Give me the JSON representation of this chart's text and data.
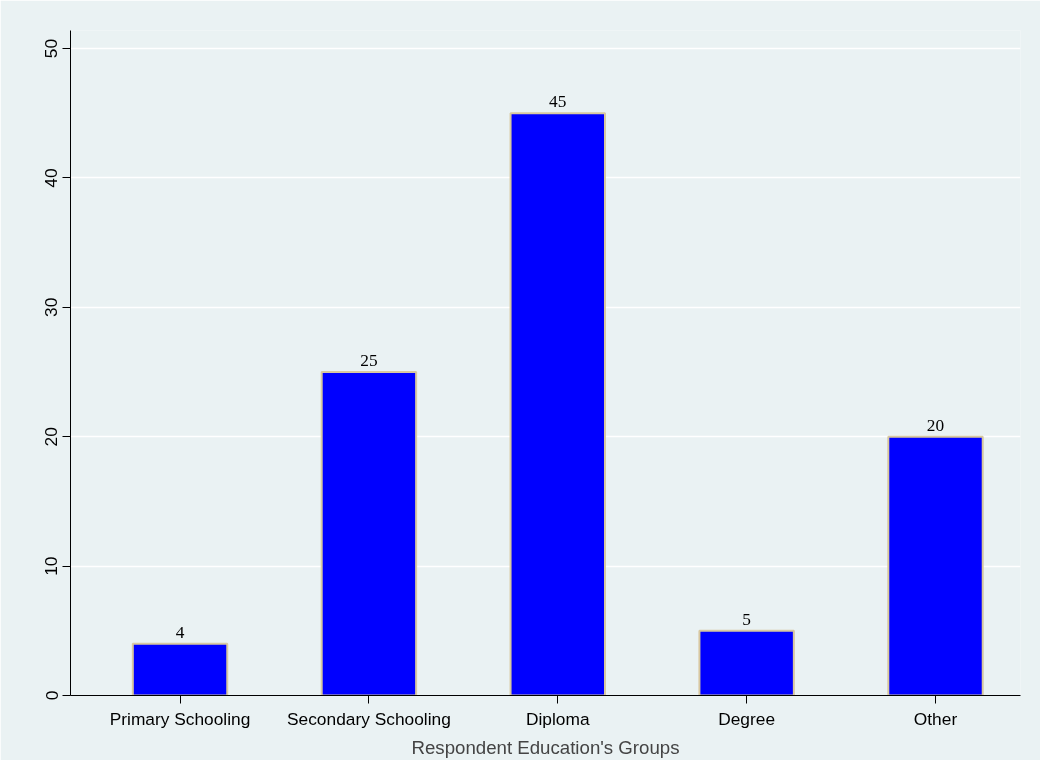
{
  "chart_data": {
    "type": "bar",
    "xlabel": "Respondent Education's Groups",
    "categories": [
      "Primary Schooling",
      "Secondary Schooling",
      "Diploma",
      "Degree",
      "Other"
    ],
    "values": [
      4,
      25,
      45,
      5,
      20
    ],
    "color": "#0000ff",
    "data_labels": true,
    "ylim": [
      0,
      51.4
    ],
    "yticks": [
      0,
      10,
      20,
      30,
      40,
      50
    ],
    "grid": "y"
  }
}
